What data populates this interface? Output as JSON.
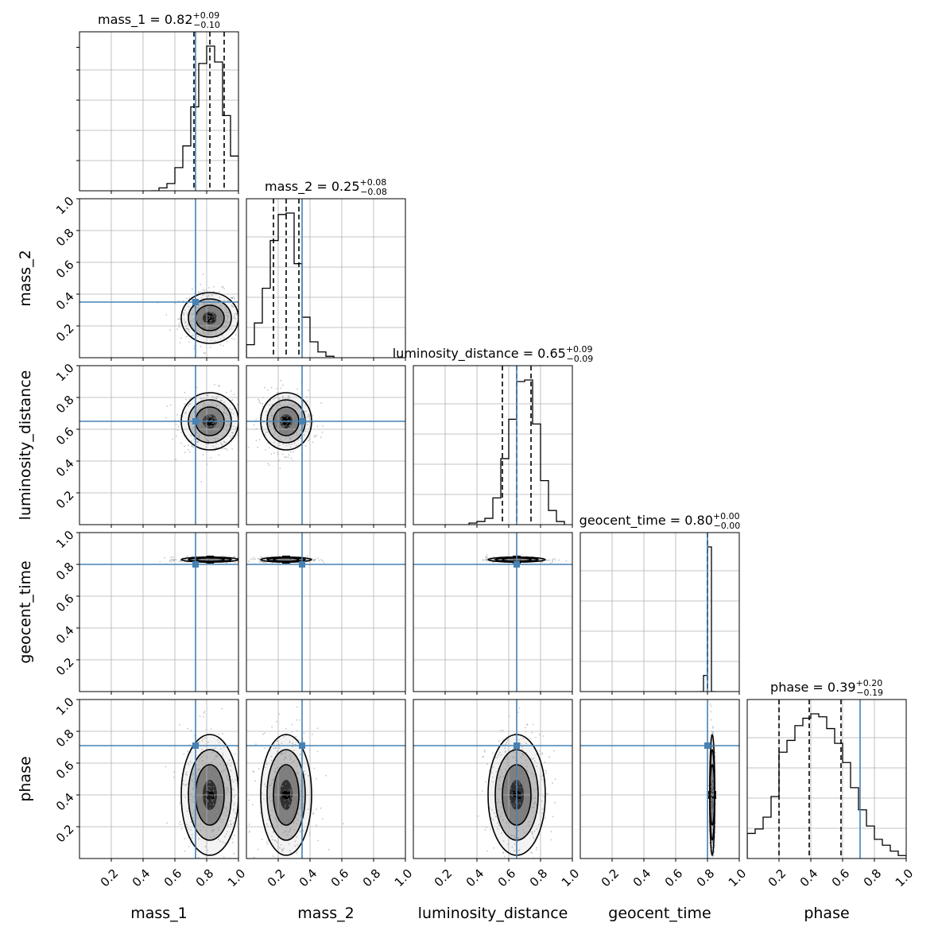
{
  "colors": {
    "truth": "#4682b4",
    "hist": "#000000",
    "grid": "#b0b0b0",
    "contour_fill": [
      "#f2f2f2",
      "#bdbdbd",
      "#7a7a7a",
      "#2b2b2b",
      "#000000"
    ]
  },
  "chart_data": {
    "type": "corner",
    "parameters": [
      "mass_1",
      "mass_2",
      "luminosity_distance",
      "geocent_time",
      "phase"
    ],
    "axis_labels": [
      "mass_1",
      "mass_2",
      "luminosity_distance",
      "geocent_time",
      "phase"
    ],
    "range": [
      0.0,
      1.0
    ],
    "tick_labels": [
      "0.2",
      "0.4",
      "0.6",
      "0.8",
      "1.0"
    ],
    "grid": true,
    "truths": [
      0.73,
      0.35,
      0.65,
      0.8,
      0.71
    ],
    "titles": [
      {
        "name": "mass_1",
        "median": "0.82",
        "plus": "+0.09",
        "minus": "−0.10"
      },
      {
        "name": "mass_2",
        "median": "0.25",
        "plus": "+0.08",
        "minus": "−0.08"
      },
      {
        "name": "luminosity_distance",
        "median": "0.65",
        "plus": "+0.09",
        "minus": "−0.09"
      },
      {
        "name": "geocent_time",
        "median": "0.80",
        "plus": "+0.00",
        "minus": "−0.00"
      },
      {
        "name": "phase",
        "median": "0.39",
        "plus": "+0.20",
        "minus": "−0.19"
      }
    ],
    "quantiles": [
      [
        0.72,
        0.82,
        0.91
      ],
      [
        0.17,
        0.25,
        0.33
      ],
      [
        0.56,
        0.65,
        0.74
      ],
      [
        0.8,
        0.8,
        0.8
      ],
      [
        0.2,
        0.39,
        0.59
      ]
    ],
    "histograms": [
      {
        "edges": [
          0.45,
          0.5,
          0.55,
          0.6,
          0.65,
          0.7,
          0.75,
          0.8,
          0.85,
          0.9,
          0.95,
          1.0
        ],
        "heights": [
          0.0,
          0.02,
          0.05,
          0.16,
          0.31,
          0.58,
          0.88,
          1.0,
          0.89,
          0.52,
          0.24
        ]
      },
      {
        "edges": [
          0.0,
          0.05,
          0.1,
          0.15,
          0.2,
          0.25,
          0.3,
          0.35,
          0.4,
          0.45,
          0.5,
          0.55
        ],
        "heights": [
          0.09,
          0.24,
          0.48,
          0.81,
          0.99,
          1.0,
          0.65,
          0.28,
          0.11,
          0.04,
          0.01
        ]
      },
      {
        "edges": [
          0.35,
          0.4,
          0.45,
          0.5,
          0.55,
          0.6,
          0.65,
          0.7,
          0.75,
          0.8,
          0.85,
          0.9,
          0.95
        ],
        "heights": [
          0.01,
          0.02,
          0.04,
          0.17,
          0.42,
          0.67,
          0.91,
          0.92,
          0.64,
          0.28,
          0.09,
          0.02
        ]
      },
      {
        "edges": [
          0.75,
          0.775,
          0.8,
          0.825,
          0.85
        ],
        "heights": [
          0.0,
          0.1,
          0.9,
          0.0
        ]
      },
      {
        "edges": [
          0.0,
          0.05,
          0.1,
          0.15,
          0.2,
          0.25,
          0.3,
          0.35,
          0.4,
          0.45,
          0.5,
          0.55,
          0.6,
          0.65,
          0.7,
          0.75,
          0.8,
          0.85,
          0.9,
          0.95,
          1.0
        ],
        "heights": [
          0.17,
          0.2,
          0.28,
          0.42,
          0.72,
          0.8,
          0.9,
          0.95,
          0.98,
          0.96,
          0.88,
          0.78,
          0.65,
          0.48,
          0.33,
          0.22,
          0.13,
          0.09,
          0.05,
          0.02
        ]
      }
    ],
    "posterior_2d": {
      "means": [
        0.82,
        0.25,
        0.65,
        0.83,
        0.4
      ],
      "sigmas": [
        0.09,
        0.08,
        0.09,
        0.008,
        0.19
      ]
    }
  }
}
